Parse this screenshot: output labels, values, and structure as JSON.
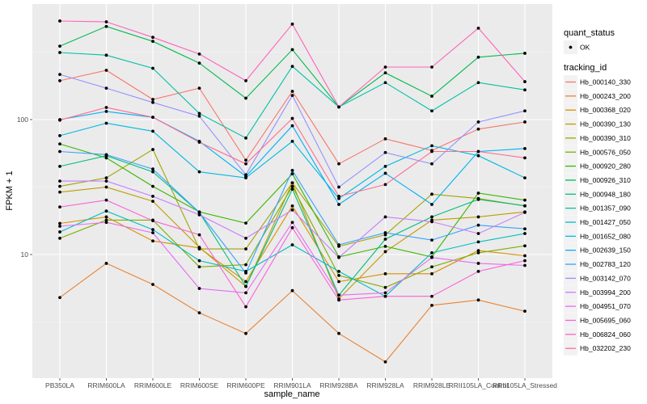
{
  "chart_data": {
    "type": "line",
    "title": "",
    "xlabel": "sample_name",
    "ylabel": "FPKM + 1",
    "yscale": "log10",
    "ylim": [
      1.3,
      700
    ],
    "yticks": [
      10,
      100
    ],
    "ytick_labels": [
      "10",
      "100"
    ],
    "grid": true,
    "categories": [
      "PB350LA",
      "RRIM600LA",
      "RRIM600LE",
      "RRIM600SE",
      "RRIM600PE",
      "RRIM901LA",
      "RRIM928BA",
      "RRIM928LA",
      "RRIM928LE",
      "RRII105LA_Control",
      "RRII105LA_Stressed"
    ],
    "legend": {
      "placement": "right",
      "shape_title": "quant_status",
      "shape_entries": [
        "OK"
      ],
      "color_title": "tracking_id"
    },
    "series": [
      {
        "name": "Hb_000140_330",
        "color": "#F8766D",
        "values": [
          194,
          232,
          141,
          171,
          50,
          162,
          47,
          72,
          59,
          85,
          96
        ]
      },
      {
        "name": "Hb_000243_200",
        "color": "#EA8331",
        "values": [
          4.8,
          8.6,
          6.0,
          3.7,
          2.6,
          5.4,
          2.6,
          1.6,
          4.2,
          4.6,
          3.8
        ]
      },
      {
        "name": "Hb_000368_020",
        "color": "#D89000",
        "values": [
          17,
          19,
          12.6,
          11.2,
          6.3,
          22.9,
          6.3,
          7.2,
          7.2,
          10.7,
          9.8
        ]
      },
      {
        "name": "Hb_000390_130",
        "color": "#C09B00",
        "values": [
          29,
          31.6,
          24.8,
          11.3,
          5.8,
          34,
          4.7,
          10.5,
          18,
          19,
          20.7
        ]
      },
      {
        "name": "Hb_000390_310",
        "color": "#A3A500",
        "values": [
          32,
          37,
          60,
          11,
          11,
          34,
          11.5,
          14,
          28,
          26,
          22.9
        ]
      },
      {
        "name": "Hb_000576_050",
        "color": "#7CAE00",
        "values": [
          13.2,
          18,
          18,
          8.1,
          8.4,
          32,
          7,
          5.7,
          8.1,
          10.3,
          11.6
        ]
      },
      {
        "name": "Hb_000920_280",
        "color": "#39B600",
        "values": [
          66,
          52,
          32,
          20.7,
          17.1,
          39.6,
          9.6,
          11.5,
          9.6,
          28.5,
          25.3
        ]
      },
      {
        "name": "Hb_000926_310",
        "color": "#00BB4E",
        "values": [
          350,
          490,
          380,
          262,
          144,
          330,
          124,
          222,
          149,
          290,
          310
        ]
      },
      {
        "name": "Hb_000948_180",
        "color": "#00BF7D",
        "values": [
          45,
          54,
          41,
          20.5,
          5.8,
          30.5,
          5,
          13,
          19,
          25.6,
          23
        ]
      },
      {
        "name": "Hb_001357_090",
        "color": "#00C1A3",
        "values": [
          314,
          300,
          240,
          111,
          73,
          248,
          124,
          188,
          116,
          188,
          166
        ]
      },
      {
        "name": "Hb_001427_050",
        "color": "#00BFC4",
        "values": [
          14.7,
          21,
          15.3,
          9,
          7.5,
          11.8,
          7.5,
          4.9,
          10.3,
          12.4,
          14.3
        ]
      },
      {
        "name": "Hb_001652_080",
        "color": "#00BAE0",
        "values": [
          76,
          94,
          82,
          41,
          37,
          69,
          26,
          45,
          64,
          54,
          37
        ]
      },
      {
        "name": "Hb_002639_150",
        "color": "#00B0F6",
        "values": [
          100,
          115,
          104,
          69,
          38,
          90,
          23.5,
          40,
          23.5,
          58,
          61
        ]
      },
      {
        "name": "Hb_002783_120",
        "color": "#35A2FF",
        "values": [
          58,
          55,
          43,
          20.5,
          7.3,
          42,
          11.8,
          14.5,
          12.8,
          16.5,
          15.5
        ]
      },
      {
        "name": "Hb_003142_070",
        "color": "#9590FF",
        "values": [
          216,
          171,
          134,
          106,
          39,
          151,
          31.6,
          57,
          47,
          96,
          116
        ]
      },
      {
        "name": "Hb_003994_200",
        "color": "#C77CFF",
        "values": [
          35,
          35,
          27,
          19.7,
          13.2,
          21.4,
          9.5,
          19,
          17.5,
          14.3,
          20.5
        ]
      },
      {
        "name": "Hb_004951_070",
        "color": "#E76BF3",
        "values": [
          16.2,
          17.3,
          14.5,
          5.6,
          5.2,
          17.3,
          5,
          5.2,
          9.5,
          8.6,
          8.3
        ]
      },
      {
        "name": "Hb_005695_060",
        "color": "#FA62DB",
        "values": [
          22.5,
          25.3,
          17.8,
          14,
          4.1,
          15.8,
          4.6,
          4.9,
          4.9,
          7.5,
          9
        ]
      },
      {
        "name": "Hb_006824_060",
        "color": "#FF62BC",
        "values": [
          538,
          530,
          407,
          306,
          194,
          510,
          124,
          245,
          245,
          476,
          191
        ]
      },
      {
        "name": "Hb_032202_230",
        "color": "#FF6C91",
        "values": [
          99,
          123,
          104,
          68,
          47,
          102,
          27,
          33,
          58,
          58,
          52
        ]
      }
    ]
  }
}
